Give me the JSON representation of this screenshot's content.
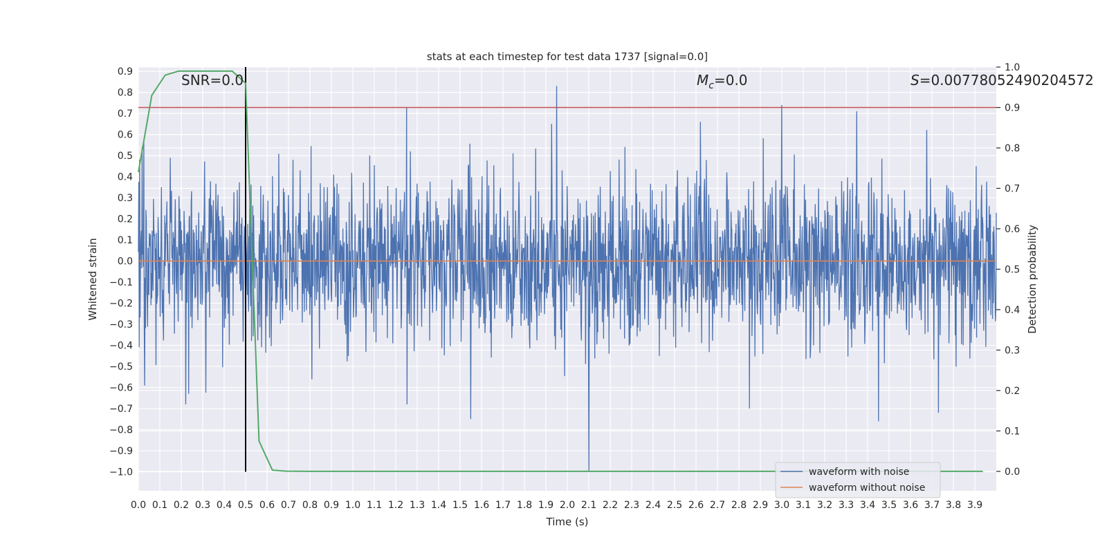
{
  "chart_data": {
    "type": "line",
    "title": "stats at each timestep for test data 1737 [signal=0.0]",
    "xlabel": "Time (s)",
    "ylabel": "Whitened strain",
    "y2label": "Detection probability",
    "xlim": [
      0.0,
      4.0
    ],
    "ylim": [
      -1.09,
      0.92
    ],
    "y2lim": [
      -0.048,
      1.0
    ],
    "xticks": [
      "0.0",
      "0.1",
      "0.2",
      "0.3",
      "0.4",
      "0.5",
      "0.6",
      "0.7",
      "0.8",
      "0.9",
      "1.0",
      "1.1",
      "1.2",
      "1.3",
      "1.4",
      "1.5",
      "1.6",
      "1.7",
      "1.8",
      "1.9",
      "2.0",
      "2.1",
      "2.2",
      "2.3",
      "2.4",
      "2.5",
      "2.6",
      "2.7",
      "2.8",
      "2.9",
      "3.0",
      "3.1",
      "3.2",
      "3.3",
      "3.4",
      "3.5",
      "3.6",
      "3.7",
      "3.8",
      "3.9"
    ],
    "yticks": [
      "0.9",
      "0.8",
      "0.7",
      "0.6",
      "0.5",
      "0.4",
      "0.3",
      "0.2",
      "0.1",
      "0.0",
      "−0.1",
      "−0.2",
      "−0.3",
      "−0.4",
      "−0.5",
      "−0.6",
      "−0.7",
      "−0.8",
      "−0.9",
      "−1.0"
    ],
    "yticks_values": [
      0.9,
      0.8,
      0.7,
      0.6,
      0.5,
      0.4,
      0.3,
      0.2,
      0.1,
      0.0,
      -0.1,
      -0.2,
      -0.3,
      -0.4,
      -0.5,
      -0.6,
      -0.7,
      -0.8,
      -0.9,
      -1.0
    ],
    "y2ticks": [
      "0.0",
      "0.1",
      "0.2",
      "0.3",
      "0.4",
      "0.5",
      "0.6",
      "0.7",
      "0.8",
      "0.9",
      "1.0"
    ],
    "y2ticks_values": [
      0.0,
      0.1,
      0.2,
      0.3,
      0.4,
      0.5,
      0.6,
      0.7,
      0.8,
      0.9,
      1.0
    ],
    "annotations": {
      "snr": "SNR=0.0",
      "mc_symbol": "M",
      "mc_sub": "c",
      "mc_value": "=0.0",
      "s_symbol": "S",
      "s_value": "=0.00778052490204572"
    },
    "vline_x": 0.5,
    "threshold_prob": 0.9,
    "series": [
      {
        "name": "waveform with noise",
        "color": "#4c72b0",
        "noise_std": 0.2,
        "samples": 2048
      },
      {
        "name": "waveform without noise",
        "color": "#dd8452",
        "values": "constant 0.0"
      },
      {
        "name": "detection probability",
        "color": "#55a868",
        "axis": "right",
        "x": [
          0.0,
          0.0625,
          0.125,
          0.1875,
          0.25,
          0.3125,
          0.375,
          0.4375,
          0.5,
          0.5625,
          0.625,
          0.6875,
          0.75,
          0.8,
          1.0,
          2.0,
          3.0,
          3.9375
        ],
        "y": [
          0.74,
          0.93,
          0.98,
          0.99,
          0.99,
          0.99,
          0.99,
          0.99,
          0.96,
          0.075,
          0.003,
          0.0005,
          0.0002,
          0.0001,
          0.0001,
          0.0001,
          0.0001,
          0.0001
        ]
      }
    ],
    "spikes": [
      {
        "x": 1.95,
        "y": 0.83
      },
      {
        "x": 2.1,
        "y": -1.0
      },
      {
        "x": 1.55,
        "y": -0.75
      },
      {
        "x": 3.45,
        "y": -0.76
      },
      {
        "x": 3.73,
        "y": -0.72
      },
      {
        "x": 1.25,
        "y": 0.73
      },
      {
        "x": 3.35,
        "y": 0.71
      },
      {
        "x": 3.0,
        "y": 0.74
      },
      {
        "x": 0.22,
        "y": -0.68
      },
      {
        "x": 2.85,
        "y": -0.7
      }
    ],
    "legend": {
      "position": "lower-right",
      "entries": [
        "waveform with noise",
        "waveform without noise"
      ]
    },
    "colors": {
      "background": "#eaeaf2",
      "grid": "#ffffff",
      "noise": "#4c72b0",
      "clean": "#dd8452",
      "prob": "#55a868",
      "threshold": "#c44e52",
      "vline": "#000000"
    }
  }
}
